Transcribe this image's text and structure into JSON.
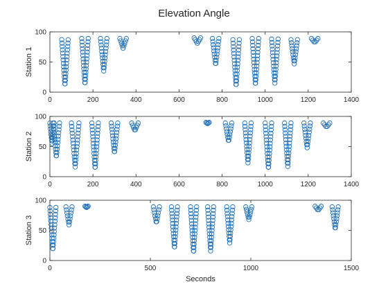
{
  "figure": {
    "title": "Elevation Angle",
    "marker_color": "#1f6fb5",
    "axis_color": "#262626",
    "background": "#ffffff"
  },
  "chart_data": [
    {
      "type": "scatter",
      "marker": "circle-open",
      "ylabel": "Station 1",
      "xlabel": "",
      "xlim": [
        0,
        1400
      ],
      "ylim": [
        0,
        100
      ],
      "xticks": [
        0,
        200,
        400,
        600,
        800,
        1000,
        1200,
        1400
      ],
      "yticks": [
        0,
        50,
        100
      ],
      "passes": [
        {
          "x_start": 55,
          "x_end": 85,
          "y_min": 11,
          "y_max": 87
        },
        {
          "x_start": 148,
          "x_end": 178,
          "y_min": 13,
          "y_max": 89
        },
        {
          "x_start": 235,
          "x_end": 265,
          "y_min": 35,
          "y_max": 89
        },
        {
          "x_start": 325,
          "x_end": 355,
          "y_min": 73,
          "y_max": 89
        },
        {
          "x_start": 670,
          "x_end": 700,
          "y_min": 81,
          "y_max": 90
        },
        {
          "x_start": 755,
          "x_end": 785,
          "y_min": 45,
          "y_max": 89
        },
        {
          "x_start": 850,
          "x_end": 880,
          "y_min": 10,
          "y_max": 87
        },
        {
          "x_start": 940,
          "x_end": 970,
          "y_min": 12,
          "y_max": 89
        },
        {
          "x_start": 1030,
          "x_end": 1060,
          "y_min": 15,
          "y_max": 88
        },
        {
          "x_start": 1120,
          "x_end": 1150,
          "y_min": 47,
          "y_max": 87
        },
        {
          "x_start": 1215,
          "x_end": 1245,
          "y_min": 82,
          "y_max": 89
        }
      ]
    },
    {
      "type": "scatter",
      "marker": "circle-open",
      "ylabel": "Station 2",
      "xlabel": "",
      "xlim": [
        0,
        1400
      ],
      "ylim": [
        0,
        100
      ],
      "xticks": [
        0,
        200,
        400,
        600,
        800,
        1000,
        1200,
        1400
      ],
      "yticks": [
        0,
        50,
        100
      ],
      "passes": [
        {
          "x_start": 0,
          "x_end": 20,
          "y_min": 55,
          "y_max": 89
        },
        {
          "x_start": 15,
          "x_end": 45,
          "y_min": 32,
          "y_max": 89
        },
        {
          "x_start": 100,
          "x_end": 135,
          "y_min": 16,
          "y_max": 89
        },
        {
          "x_start": 195,
          "x_end": 225,
          "y_min": 13,
          "y_max": 89
        },
        {
          "x_start": 285,
          "x_end": 315,
          "y_min": 39,
          "y_max": 89
        },
        {
          "x_start": 380,
          "x_end": 410,
          "y_min": 76,
          "y_max": 89
        },
        {
          "x_start": 725,
          "x_end": 740,
          "y_min": 88,
          "y_max": 90
        },
        {
          "x_start": 815,
          "x_end": 845,
          "y_min": 58,
          "y_max": 89
        },
        {
          "x_start": 905,
          "x_end": 935,
          "y_min": 23,
          "y_max": 89
        },
        {
          "x_start": 1000,
          "x_end": 1030,
          "y_min": 13,
          "y_max": 89
        },
        {
          "x_start": 1090,
          "x_end": 1120,
          "y_min": 17,
          "y_max": 89
        },
        {
          "x_start": 1180,
          "x_end": 1210,
          "y_min": 48,
          "y_max": 89
        },
        {
          "x_start": 1270,
          "x_end": 1300,
          "y_min": 82,
          "y_max": 89
        }
      ]
    },
    {
      "type": "scatter",
      "marker": "circle-open",
      "ylabel": "Station 3",
      "xlabel": "Seconds",
      "xlim": [
        0,
        1500
      ],
      "ylim": [
        0,
        100
      ],
      "xticks": [
        0,
        500,
        1000,
        1500
      ],
      "yticks": [
        0,
        50,
        100
      ],
      "passes": [
        {
          "x_start": 0,
          "x_end": 30,
          "y_min": 17,
          "y_max": 88
        },
        {
          "x_start": 80,
          "x_end": 110,
          "y_min": 59,
          "y_max": 89
        },
        {
          "x_start": 175,
          "x_end": 190,
          "y_min": 88,
          "y_max": 90
        },
        {
          "x_start": 515,
          "x_end": 545,
          "y_min": 62,
          "y_max": 89
        },
        {
          "x_start": 605,
          "x_end": 635,
          "y_min": 20,
          "y_max": 89
        },
        {
          "x_start": 700,
          "x_end": 730,
          "y_min": 13,
          "y_max": 89
        },
        {
          "x_start": 785,
          "x_end": 815,
          "y_min": 16,
          "y_max": 89
        },
        {
          "x_start": 880,
          "x_end": 910,
          "y_min": 29,
          "y_max": 89
        },
        {
          "x_start": 975,
          "x_end": 1005,
          "y_min": 68,
          "y_max": 89
        },
        {
          "x_start": 1320,
          "x_end": 1350,
          "y_min": 83,
          "y_max": 90
        },
        {
          "x_start": 1405,
          "x_end": 1435,
          "y_min": 52,
          "y_max": 89
        }
      ]
    }
  ]
}
